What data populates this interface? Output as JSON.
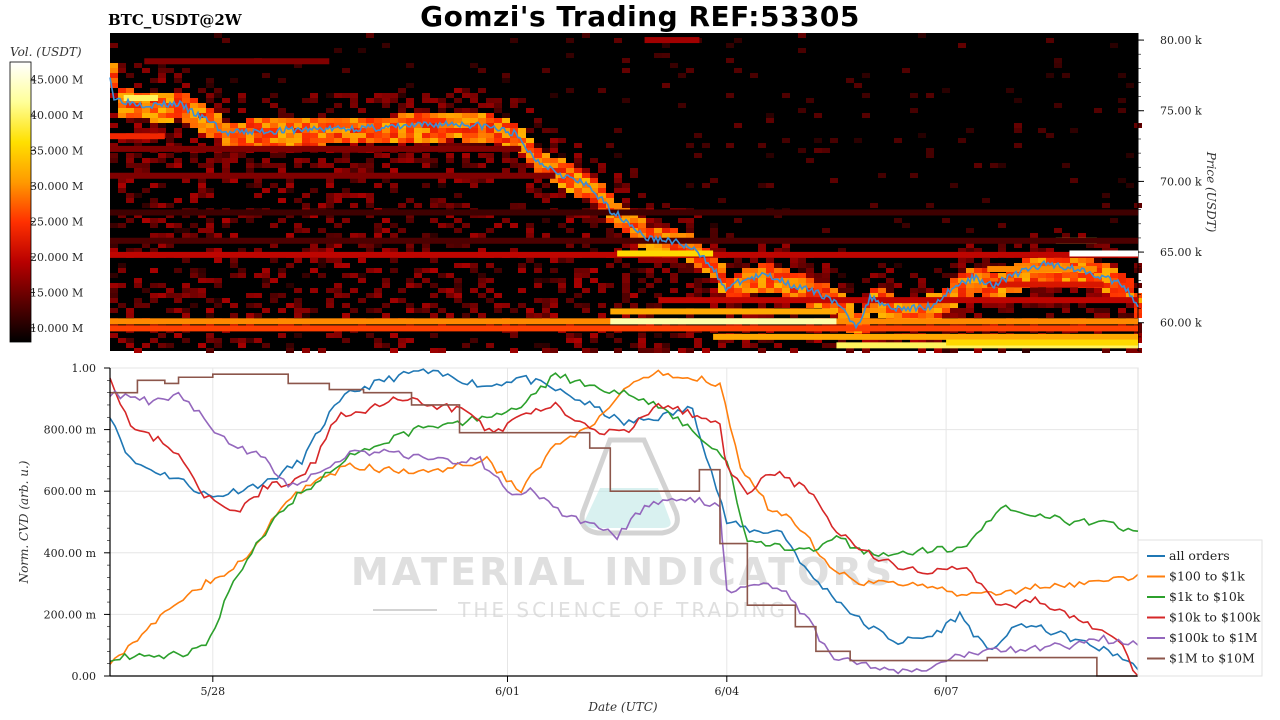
{
  "header": {
    "title": "Gomzi's Trading REF:53305",
    "pair": "BTC_USDT@2W"
  },
  "watermark": {
    "main": "MATERIAL INDICATORS",
    "sub": "THE SCIENCE OF TRADING"
  },
  "chart_data": [
    {
      "type": "heatmap",
      "title": "",
      "ylabel": "Price (USDT)",
      "ylim": [
        58000,
        80500
      ],
      "y_ticks": [
        "60.00 k",
        "65.00 k",
        "70.00 k",
        "75.00 k",
        "80.00 k"
      ],
      "y_tick_values": [
        60000,
        65000,
        70000,
        75000,
        80000
      ],
      "colorbar": {
        "label": "Vol. (USDT)",
        "range": [
          8000000,
          47500000
        ],
        "ticks": [
          "10.000 M",
          "15.000 M",
          "20.000 M",
          "25.000 M",
          "30.000 M",
          "35.000 M",
          "40.000 M",
          "45.000 M"
        ],
        "tick_values": [
          10000000,
          15000000,
          20000000,
          25000000,
          30000000,
          35000000,
          40000000,
          45000000
        ],
        "colors": [
          "#000000",
          "#5a0000",
          "#b80000",
          "#ff3000",
          "#ff9a00",
          "#ffe000",
          "#ffff99",
          "#ffffff"
        ]
      },
      "x_range_days": [
        0,
        15
      ],
      "price_series": {
        "x": [
          0,
          0.05,
          0.3,
          0.6,
          1.0,
          1.3,
          1.5,
          1.65,
          2.0,
          3.0,
          4.0,
          5.0,
          5.5,
          5.9,
          6.2,
          6.6,
          7.0,
          7.3,
          7.6,
          7.8,
          8.2,
          8.5,
          8.8,
          8.95,
          9.3,
          9.6,
          10.0,
          10.5,
          10.9,
          11.1,
          11.4,
          11.7,
          12.0,
          12.3,
          12.6,
          12.9,
          13.1,
          13.4,
          13.7,
          14.0,
          14.3,
          14.6,
          14.8,
          15.0
        ],
        "y": [
          77600,
          75900,
          75600,
          75400,
          75500,
          74600,
          74200,
          73400,
          73500,
          73700,
          73800,
          74100,
          73900,
          73400,
          71600,
          70500,
          69600,
          68000,
          67000,
          66000,
          65800,
          65200,
          64000,
          62400,
          63100,
          63400,
          62600,
          61800,
          59800,
          61800,
          61100,
          61000,
          61200,
          62500,
          63200,
          62700,
          63200,
          63800,
          64200,
          63900,
          63600,
          63000,
          62600,
          61000
        ]
      },
      "liquidity_bands": [
        {
          "price": 60100,
          "x0": 0,
          "x1": 15,
          "level": 0.55
        },
        {
          "price": 60100,
          "x0": 7.3,
          "x1": 10.6,
          "level": 0.88
        },
        {
          "price": 59600,
          "x0": 0,
          "x1": 15,
          "level": 0.45
        },
        {
          "price": 59000,
          "x0": 8.8,
          "x1": 15,
          "level": 0.6
        },
        {
          "price": 58400,
          "x0": 10.6,
          "x1": 15,
          "level": 0.8
        },
        {
          "price": 58600,
          "x0": 12.2,
          "x1": 15,
          "level": 0.7
        },
        {
          "price": 60800,
          "x0": 7.3,
          "x1": 10.6,
          "level": 0.6
        },
        {
          "price": 64800,
          "x0": 0,
          "x1": 15,
          "level": 0.3
        },
        {
          "price": 64900,
          "x0": 7.4,
          "x1": 8.8,
          "level": 0.7
        },
        {
          "price": 64900,
          "x0": 14.0,
          "x1": 15,
          "level": 1.0
        },
        {
          "price": 65800,
          "x0": 13.8,
          "x1": 14.4,
          "level": 0.8
        },
        {
          "price": 75900,
          "x0": 0.2,
          "x1": 0.7,
          "level": 0.8
        },
        {
          "price": 73200,
          "x0": 0,
          "x1": 0.8,
          "level": 0.4
        },
        {
          "price": 70400,
          "x0": 0,
          "x1": 6.5,
          "level": 0.2
        },
        {
          "price": 72300,
          "x0": 0,
          "x1": 6.0,
          "level": 0.2
        },
        {
          "price": 78500,
          "x0": 0.5,
          "x1": 3.2,
          "level": 0.2
        },
        {
          "price": 80000,
          "x0": 7.8,
          "x1": 8.6,
          "level": 0.25
        },
        {
          "price": 63800,
          "x0": 12.8,
          "x1": 14.4,
          "level": 0.55
        },
        {
          "price": 62700,
          "x0": 12.8,
          "x1": 14.5,
          "level": 0.35
        },
        {
          "price": 65800,
          "x0": 0,
          "x1": 15,
          "level": 0.12
        },
        {
          "price": 67800,
          "x0": 0,
          "x1": 15,
          "level": 0.1
        },
        {
          "price": 61600,
          "x0": 8.0,
          "x1": 15,
          "level": 0.3
        }
      ]
    },
    {
      "type": "line",
      "title": "",
      "xlabel": "Date (UTC)",
      "ylabel": "Norm. CVD (arb. u.)",
      "ylim": [
        0,
        1.0
      ],
      "y_ticks": [
        "0.00",
        "200.00 m",
        "400.00 m",
        "600.00 m",
        "800.00 m",
        "1.00"
      ],
      "y_tick_values": [
        0,
        0.2,
        0.4,
        0.6,
        0.8,
        1.0
      ],
      "x_ticks": [
        "5/28",
        "6/01",
        "6/04",
        "6/07"
      ],
      "x_tick_values": [
        1.5,
        5.8,
        9.0,
        12.2
      ],
      "xlim": [
        0,
        15
      ],
      "legend_position": "right",
      "series": [
        {
          "name": "all orders",
          "color": "#1f77b4",
          "x": [
            0,
            0.3,
            0.6,
            1.0,
            1.3,
            1.5,
            1.8,
            2.3,
            2.8,
            3.2,
            3.5,
            4.0,
            4.5,
            5.0,
            5.5,
            6.0,
            6.5,
            7.0,
            7.5,
            8.0,
            8.5,
            8.7,
            9.0,
            9.4,
            9.8,
            10.2,
            10.6,
            11.0,
            11.5,
            12.0,
            12.4,
            12.8,
            13.3,
            13.8,
            14.3,
            14.7,
            15.0
          ],
          "y": [
            0.85,
            0.7,
            0.67,
            0.64,
            0.6,
            0.58,
            0.6,
            0.63,
            0.7,
            0.85,
            0.92,
            0.96,
            0.99,
            0.97,
            0.94,
            0.97,
            0.93,
            0.88,
            0.82,
            0.84,
            0.87,
            0.72,
            0.5,
            0.47,
            0.47,
            0.33,
            0.25,
            0.17,
            0.11,
            0.13,
            0.2,
            0.08,
            0.17,
            0.14,
            0.1,
            0.07,
            0.02
          ]
        },
        {
          "name": "$100 to $1k",
          "color": "#ff7f0e",
          "x": [
            0,
            0.4,
            0.8,
            1.2,
            1.6,
            2.0,
            2.5,
            3.0,
            3.5,
            4.0,
            4.5,
            5.0,
            5.5,
            6.0,
            6.5,
            7.0,
            7.5,
            8.0,
            8.5,
            8.9,
            9.2,
            9.6,
            10.0,
            10.5,
            11.0,
            11.5,
            12.0,
            12.5,
            13.0,
            13.5,
            14.0,
            14.5,
            15.0
          ],
          "y": [
            0.05,
            0.12,
            0.2,
            0.28,
            0.32,
            0.38,
            0.55,
            0.64,
            0.68,
            0.67,
            0.66,
            0.68,
            0.7,
            0.6,
            0.75,
            0.8,
            0.93,
            0.98,
            0.97,
            0.95,
            0.68,
            0.55,
            0.5,
            0.36,
            0.3,
            0.3,
            0.29,
            0.26,
            0.27,
            0.29,
            0.3,
            0.3,
            0.33
          ]
        },
        {
          "name": "$1k to $10k",
          "color": "#2ca02c",
          "x": [
            0,
            0.5,
            1.0,
            1.4,
            1.8,
            2.2,
            2.6,
            3.0,
            3.5,
            4.0,
            4.5,
            5.0,
            5.5,
            6.0,
            6.5,
            7.0,
            7.5,
            8.0,
            8.5,
            9.0,
            9.3,
            9.7,
            10.2,
            10.6,
            11.0,
            11.5,
            12.0,
            12.5,
            13.0,
            13.5,
            14.0,
            14.5,
            15.0
          ],
          "y": [
            0.06,
            0.06,
            0.07,
            0.1,
            0.3,
            0.45,
            0.56,
            0.63,
            0.72,
            0.76,
            0.8,
            0.82,
            0.84,
            0.87,
            0.98,
            0.94,
            0.92,
            0.88,
            0.8,
            0.7,
            0.43,
            0.42,
            0.41,
            0.45,
            0.4,
            0.4,
            0.41,
            0.42,
            0.55,
            0.53,
            0.5,
            0.5,
            0.47
          ]
        },
        {
          "name": "$10k to $100k",
          "color": "#d62728",
          "x": [
            0,
            0.3,
            0.7,
            1.0,
            1.3,
            1.6,
            1.9,
            2.3,
            2.7,
            3.0,
            3.3,
            3.8,
            4.2,
            4.7,
            5.2,
            5.6,
            6.0,
            6.5,
            7.0,
            7.5,
            8.0,
            8.5,
            8.9,
            9.0,
            9.3,
            9.7,
            10.2,
            10.6,
            11.0,
            11.5,
            12.0,
            12.5,
            13.0,
            13.5,
            14.0,
            14.4,
            14.7,
            15.0
          ],
          "y": [
            0.98,
            0.8,
            0.77,
            0.72,
            0.6,
            0.55,
            0.54,
            0.62,
            0.63,
            0.7,
            0.84,
            0.87,
            0.9,
            0.88,
            0.86,
            0.78,
            0.84,
            0.88,
            0.8,
            0.79,
            0.88,
            0.85,
            0.82,
            0.68,
            0.6,
            0.66,
            0.6,
            0.47,
            0.4,
            0.36,
            0.34,
            0.35,
            0.22,
            0.25,
            0.2,
            0.15,
            0.12,
            0.0
          ]
        },
        {
          "name": "$100k to $1M",
          "color": "#9467bd",
          "x": [
            0,
            0.3,
            0.7,
            1.0,
            1.3,
            1.6,
            1.8,
            2.2,
            2.6,
            3.0,
            3.5,
            4.0,
            4.5,
            5.0,
            5.4,
            5.8,
            6.2,
            6.6,
            7.0,
            7.4,
            7.8,
            8.2,
            8.6,
            8.9,
            9.0,
            9.4,
            9.8,
            10.2,
            10.5,
            10.9,
            11.3,
            11.7,
            12.2,
            12.6,
            13.0,
            13.5,
            14.0,
            14.5,
            15.0
          ],
          "y": [
            0.92,
            0.9,
            0.89,
            0.92,
            0.85,
            0.78,
            0.74,
            0.72,
            0.62,
            0.65,
            0.72,
            0.73,
            0.71,
            0.7,
            0.7,
            0.6,
            0.6,
            0.52,
            0.5,
            0.45,
            0.55,
            0.57,
            0.57,
            0.55,
            0.27,
            0.3,
            0.28,
            0.18,
            0.07,
            0.04,
            0.02,
            0.01,
            0.05,
            0.08,
            0.08,
            0.09,
            0.1,
            0.12,
            0.1
          ]
        },
        {
          "name": "$1M to $10M",
          "color": "#8c564b",
          "step": true,
          "x": [
            0,
            0.4,
            0.8,
            1.0,
            1.5,
            2.0,
            2.6,
            3.2,
            3.7,
            4.4,
            5.1,
            5.6,
            6.4,
            7.0,
            7.3,
            7.9,
            8.6,
            8.9,
            9.3,
            9.6,
            10.0,
            10.3,
            10.8,
            11.3,
            11.8,
            12.3,
            12.8,
            13.3,
            13.9,
            14.4,
            15.0
          ],
          "y": [
            0.92,
            0.96,
            0.95,
            0.97,
            0.98,
            0.98,
            0.95,
            0.93,
            0.92,
            0.88,
            0.79,
            0.79,
            0.79,
            0.74,
            0.6,
            0.6,
            0.67,
            0.43,
            0.23,
            0.23,
            0.16,
            0.08,
            0.05,
            0.05,
            0.05,
            0.05,
            0.06,
            0.06,
            0.06,
            0.0,
            0.0
          ]
        }
      ]
    }
  ]
}
